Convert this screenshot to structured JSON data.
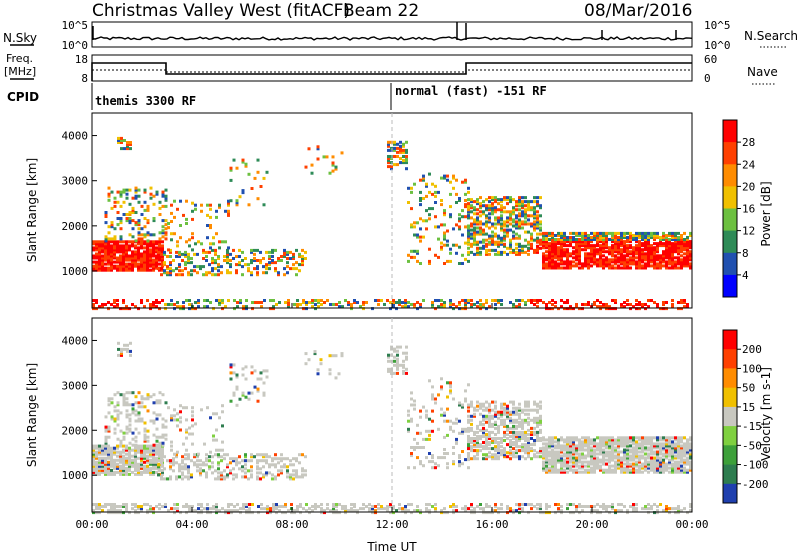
{
  "header": {
    "station": "Christmas Valley West (fitACF)",
    "beam": "Beam 22",
    "date": "08/Mar/2016"
  },
  "top_panels": {
    "nsky_label": "N.Sky",
    "nsky_ticks": [
      "10^5",
      "10^0"
    ],
    "nsearch_label": "N.Search",
    "nsearch_ticks": [
      "10^5",
      "10^0"
    ],
    "freq_label_line1": "Freq.",
    "freq_label_line2": "[MHz]",
    "freq_ticks": [
      "18",
      "8"
    ],
    "nave_label": "Nave",
    "nave_ticks": [
      "60",
      "0"
    ],
    "cpid_label": "CPID",
    "cpid_segments": [
      "themis 3300 RF",
      "normal (fast) -151 RF"
    ]
  },
  "chart_data": [
    {
      "type": "heatmap",
      "title": "",
      "ylabel": "Slant Range [km]",
      "ylim": [
        180,
        4500
      ],
      "yticks": [
        1000,
        2000,
        3000,
        4000
      ],
      "xlabel": "Time UT",
      "xlim": [
        0,
        24
      ],
      "xtick_labels": [
        "00:00",
        "04:00",
        "08:00",
        "12:00",
        "16:00",
        "20:00",
        "00:00"
      ],
      "colorbar": {
        "label": "Power [dB]",
        "ticks": [
          "4",
          "8",
          "12",
          "16",
          "20",
          "24",
          "28"
        ],
        "colors": [
          "#0000ff",
          "#2050b0",
          "#2e8b57",
          "#6cc040",
          "#f0c000",
          "#ff8c00",
          "#ff4000",
          "#ff0000"
        ]
      }
    },
    {
      "type": "heatmap",
      "title": "",
      "ylabel": "Slant Range [km]",
      "ylim": [
        180,
        4500
      ],
      "yticks": [
        1000,
        2000,
        3000,
        4000
      ],
      "xlabel": "Time UT",
      "xlim": [
        0,
        24
      ],
      "xtick_labels": [
        "00:00",
        "04:00",
        "08:00",
        "12:00",
        "16:00",
        "20:00",
        "00:00"
      ],
      "colorbar": {
        "label": "Velocity [m s-1]",
        "ticks": [
          "200",
          "100",
          "50",
          "15",
          "-15",
          "-50",
          "-100",
          "-200"
        ],
        "colors": [
          "#1f3fae",
          "#2e7d4f",
          "#3da03a",
          "#7fd040",
          "#c8c8c0",
          "#f0c000",
          "#ff8c00",
          "#ff4000",
          "#ff0000"
        ]
      }
    }
  ]
}
